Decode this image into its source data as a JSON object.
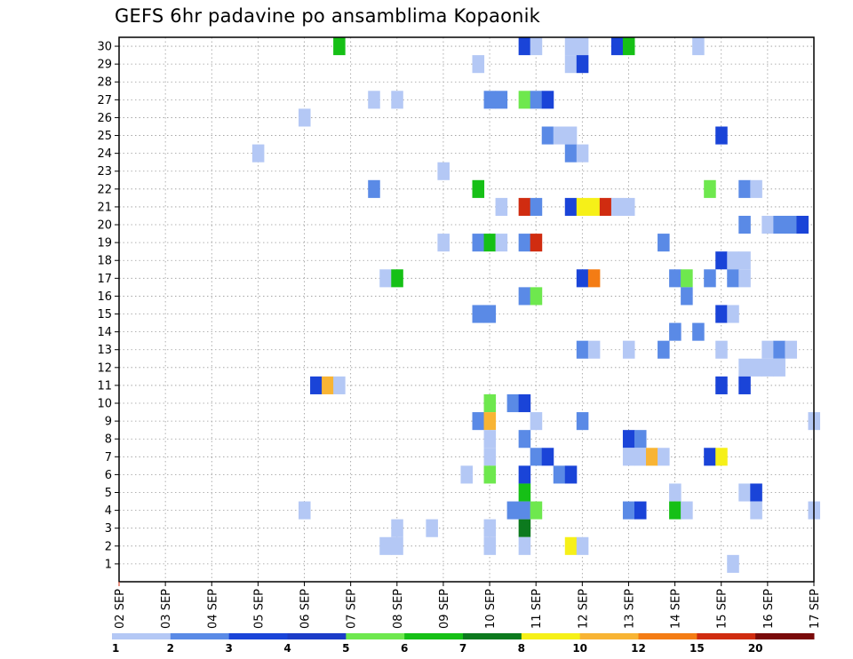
{
  "chart_data": {
    "type": "heatmap",
    "title": "GEFS 6hr padavine po ansamblima Kopaonik",
    "x_tick_labels": [
      "02 SEP",
      "03 SEP",
      "04 SEP",
      "05 SEP",
      "06 SEP",
      "07 SEP",
      "08 SEP",
      "09 SEP",
      "10 SEP",
      "11 SEP",
      "12 SEP",
      "13 SEP",
      "14 SEP",
      "15 SEP",
      "16 SEP",
      "17 SEP"
    ],
    "y_tick_labels": [
      "1",
      "2",
      "3",
      "4",
      "5",
      "6",
      "7",
      "8",
      "9",
      "10",
      "11",
      "12",
      "13",
      "14",
      "15",
      "16",
      "17",
      "18",
      "19",
      "20",
      "21",
      "22",
      "23",
      "24",
      "25",
      "26",
      "27",
      "28",
      "29",
      "30"
    ],
    "x_unit": "days, 6-hourly steps from 02 SEP",
    "legend": {
      "labels": [
        "1",
        "2",
        "3",
        "4",
        "5",
        "6",
        "7",
        "8",
        "10",
        "12",
        "15",
        "20"
      ],
      "colors": [
        "#b4c8f5",
        "#5a8ae6",
        "#1a44d8",
        "#1c3cc8",
        "#6ee84e",
        "#16c016",
        "#0c7a1e",
        "#f6f018",
        "#f8b434",
        "#f47c14",
        "#d02c10",
        "#7a0a0a"
      ]
    },
    "cells": [
      {
        "x": 4.75,
        "y": 30,
        "v": 6
      },
      {
        "x": 8.75,
        "y": 30,
        "v": 3
      },
      {
        "x": 9.0,
        "y": 30,
        "v": 1
      },
      {
        "x": 9.75,
        "y": 30,
        "v": 1
      },
      {
        "x": 10.0,
        "y": 30,
        "v": 1
      },
      {
        "x": 10.75,
        "y": 30,
        "v": 3
      },
      {
        "x": 11.0,
        "y": 30,
        "v": 6
      },
      {
        "x": 12.5,
        "y": 30,
        "v": 1
      },
      {
        "x": 7.75,
        "y": 29,
        "v": 1
      },
      {
        "x": 9.75,
        "y": 29,
        "v": 1
      },
      {
        "x": 10.0,
        "y": 29,
        "v": 3
      },
      {
        "x": 5.5,
        "y": 27,
        "v": 1
      },
      {
        "x": 6.0,
        "y": 27,
        "v": 1
      },
      {
        "x": 8.0,
        "y": 27,
        "v": 2
      },
      {
        "x": 8.25,
        "y": 27,
        "v": 2
      },
      {
        "x": 8.75,
        "y": 27,
        "v": 5
      },
      {
        "x": 9.0,
        "y": 27,
        "v": 2
      },
      {
        "x": 9.25,
        "y": 27,
        "v": 3
      },
      {
        "x": 4.0,
        "y": 26,
        "v": 1
      },
      {
        "x": 9.25,
        "y": 25,
        "v": 2
      },
      {
        "x": 9.5,
        "y": 25,
        "v": 1
      },
      {
        "x": 9.75,
        "y": 25,
        "v": 1
      },
      {
        "x": 13.0,
        "y": 25,
        "v": 3
      },
      {
        "x": 3.0,
        "y": 24,
        "v": 1
      },
      {
        "x": 9.75,
        "y": 24,
        "v": 2
      },
      {
        "x": 10.0,
        "y": 24,
        "v": 1
      },
      {
        "x": 7.0,
        "y": 23,
        "v": 1
      },
      {
        "x": 5.5,
        "y": 22,
        "v": 2
      },
      {
        "x": 7.75,
        "y": 22,
        "v": 6
      },
      {
        "x": 12.75,
        "y": 22,
        "v": 5
      },
      {
        "x": 13.5,
        "y": 22,
        "v": 2
      },
      {
        "x": 13.75,
        "y": 22,
        "v": 1
      },
      {
        "x": 8.25,
        "y": 21,
        "v": 1
      },
      {
        "x": 8.75,
        "y": 21,
        "v": 15
      },
      {
        "x": 9.0,
        "y": 21,
        "v": 2
      },
      {
        "x": 9.75,
        "y": 21,
        "v": 3
      },
      {
        "x": 10.0,
        "y": 21,
        "v": 8
      },
      {
        "x": 10.25,
        "y": 21,
        "v": 8
      },
      {
        "x": 10.5,
        "y": 21,
        "v": 15
      },
      {
        "x": 10.75,
        "y": 21,
        "v": 1
      },
      {
        "x": 11.0,
        "y": 21,
        "v": 1
      },
      {
        "x": 13.5,
        "y": 20,
        "v": 2
      },
      {
        "x": 14.0,
        "y": 20,
        "v": 1
      },
      {
        "x": 14.25,
        "y": 20,
        "v": 2
      },
      {
        "x": 14.5,
        "y": 20,
        "v": 2
      },
      {
        "x": 14.75,
        "y": 20,
        "v": 3
      },
      {
        "x": 7.0,
        "y": 19,
        "v": 1
      },
      {
        "x": 7.75,
        "y": 19,
        "v": 2
      },
      {
        "x": 8.0,
        "y": 19,
        "v": 6
      },
      {
        "x": 8.25,
        "y": 19,
        "v": 1
      },
      {
        "x": 8.75,
        "y": 19,
        "v": 2
      },
      {
        "x": 9.0,
        "y": 19,
        "v": 15
      },
      {
        "x": 11.75,
        "y": 19,
        "v": 2
      },
      {
        "x": 13.0,
        "y": 18,
        "v": 3
      },
      {
        "x": 13.25,
        "y": 18,
        "v": 1
      },
      {
        "x": 13.5,
        "y": 18,
        "v": 1
      },
      {
        "x": 5.75,
        "y": 17,
        "v": 1
      },
      {
        "x": 6.0,
        "y": 17,
        "v": 6
      },
      {
        "x": 10.0,
        "y": 17,
        "v": 3
      },
      {
        "x": 10.25,
        "y": 17,
        "v": 12
      },
      {
        "x": 12.0,
        "y": 17,
        "v": 2
      },
      {
        "x": 12.25,
        "y": 17,
        "v": 5
      },
      {
        "x": 12.75,
        "y": 17,
        "v": 2
      },
      {
        "x": 13.25,
        "y": 17,
        "v": 2
      },
      {
        "x": 13.5,
        "y": 17,
        "v": 1
      },
      {
        "x": 8.75,
        "y": 16,
        "v": 2
      },
      {
        "x": 9.0,
        "y": 16,
        "v": 5
      },
      {
        "x": 12.25,
        "y": 16,
        "v": 2
      },
      {
        "x": 7.75,
        "y": 15,
        "v": 2
      },
      {
        "x": 8.0,
        "y": 15,
        "v": 2
      },
      {
        "x": 13.0,
        "y": 15,
        "v": 3
      },
      {
        "x": 13.25,
        "y": 15,
        "v": 1
      },
      {
        "x": 12.0,
        "y": 14,
        "v": 2
      },
      {
        "x": 12.5,
        "y": 14,
        "v": 2
      },
      {
        "x": 10.0,
        "y": 13,
        "v": 2
      },
      {
        "x": 10.25,
        "y": 13,
        "v": 1
      },
      {
        "x": 11.0,
        "y": 13,
        "v": 1
      },
      {
        "x": 11.75,
        "y": 13,
        "v": 2
      },
      {
        "x": 13.0,
        "y": 13,
        "v": 1
      },
      {
        "x": 14.0,
        "y": 13,
        "v": 1
      },
      {
        "x": 14.25,
        "y": 13,
        "v": 2
      },
      {
        "x": 14.5,
        "y": 13,
        "v": 1
      },
      {
        "x": 13.5,
        "y": 12,
        "v": 1
      },
      {
        "x": 13.75,
        "y": 12,
        "v": 1
      },
      {
        "x": 14.0,
        "y": 12,
        "v": 1
      },
      {
        "x": 14.25,
        "y": 12,
        "v": 1
      },
      {
        "x": 4.25,
        "y": 11,
        "v": 3
      },
      {
        "x": 4.5,
        "y": 11,
        "v": 10
      },
      {
        "x": 4.75,
        "y": 11,
        "v": 1
      },
      {
        "x": 13.0,
        "y": 11,
        "v": 3
      },
      {
        "x": 13.5,
        "y": 11,
        "v": 3
      },
      {
        "x": 8.0,
        "y": 10,
        "v": 5
      },
      {
        "x": 8.5,
        "y": 10,
        "v": 2
      },
      {
        "x": 8.75,
        "y": 10,
        "v": 3
      },
      {
        "x": 7.75,
        "y": 9,
        "v": 2
      },
      {
        "x": 8.0,
        "y": 9,
        "v": 10
      },
      {
        "x": 9.0,
        "y": 9,
        "v": 1
      },
      {
        "x": 10.0,
        "y": 9,
        "v": 2
      },
      {
        "x": 15.0,
        "y": 9,
        "v": 1
      },
      {
        "x": 8.0,
        "y": 8,
        "v": 1
      },
      {
        "x": 8.75,
        "y": 8,
        "v": 2
      },
      {
        "x": 11.0,
        "y": 8,
        "v": 3
      },
      {
        "x": 11.25,
        "y": 8,
        "v": 2
      },
      {
        "x": 8.0,
        "y": 7,
        "v": 1
      },
      {
        "x": 9.0,
        "y": 7,
        "v": 2
      },
      {
        "x": 9.25,
        "y": 7,
        "v": 3
      },
      {
        "x": 11.0,
        "y": 7,
        "v": 1
      },
      {
        "x": 11.25,
        "y": 7,
        "v": 1
      },
      {
        "x": 11.5,
        "y": 7,
        "v": 10
      },
      {
        "x": 11.75,
        "y": 7,
        "v": 1
      },
      {
        "x": 12.75,
        "y": 7,
        "v": 3
      },
      {
        "x": 13.0,
        "y": 7,
        "v": 8
      },
      {
        "x": 7.5,
        "y": 6,
        "v": 1
      },
      {
        "x": 8.0,
        "y": 6,
        "v": 5
      },
      {
        "x": 8.75,
        "y": 6,
        "v": 3
      },
      {
        "x": 9.5,
        "y": 6,
        "v": 2
      },
      {
        "x": 9.75,
        "y": 6,
        "v": 3
      },
      {
        "x": 8.75,
        "y": 5,
        "v": 6
      },
      {
        "x": 12.0,
        "y": 5,
        "v": 1
      },
      {
        "x": 13.5,
        "y": 5,
        "v": 1
      },
      {
        "x": 13.75,
        "y": 5,
        "v": 3
      },
      {
        "x": 4.0,
        "y": 4,
        "v": 1
      },
      {
        "x": 8.5,
        "y": 4,
        "v": 2
      },
      {
        "x": 8.75,
        "y": 4,
        "v": 2
      },
      {
        "x": 9.0,
        "y": 4,
        "v": 5
      },
      {
        "x": 11.0,
        "y": 4,
        "v": 2
      },
      {
        "x": 11.25,
        "y": 4,
        "v": 3
      },
      {
        "x": 12.0,
        "y": 4,
        "v": 6
      },
      {
        "x": 12.25,
        "y": 4,
        "v": 1
      },
      {
        "x": 13.75,
        "y": 4,
        "v": 1
      },
      {
        "x": 15.0,
        "y": 4,
        "v": 1
      },
      {
        "x": 6.0,
        "y": 3,
        "v": 1
      },
      {
        "x": 6.75,
        "y": 3,
        "v": 1
      },
      {
        "x": 8.0,
        "y": 3,
        "v": 1
      },
      {
        "x": 8.75,
        "y": 3,
        "v": 7
      },
      {
        "x": 5.75,
        "y": 2,
        "v": 1
      },
      {
        "x": 6.0,
        "y": 2,
        "v": 1
      },
      {
        "x": 8.0,
        "y": 2,
        "v": 1
      },
      {
        "x": 8.75,
        "y": 2,
        "v": 1
      },
      {
        "x": 9.75,
        "y": 2,
        "v": 8
      },
      {
        "x": 10.0,
        "y": 2,
        "v": 1
      },
      {
        "x": 13.25,
        "y": 1,
        "v": 1
      }
    ]
  }
}
